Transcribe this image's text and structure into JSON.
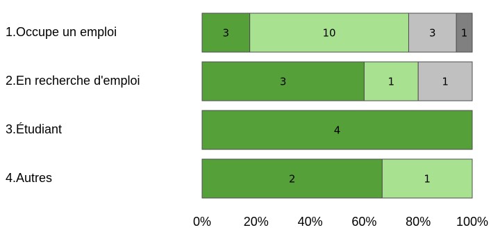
{
  "chart_data": {
    "type": "bar",
    "orientation": "horizontal",
    "stacked": "percent",
    "categories": [
      "1.Occupe un emploi",
      "2.En recherche d'emploi",
      "3.Étudiant",
      "4.Autres"
    ],
    "series": [
      {
        "values": [
          3,
          3,
          4,
          2
        ],
        "color": "#56a03a"
      },
      {
        "values": [
          10,
          1,
          0,
          1
        ],
        "color": "#a8e190"
      },
      {
        "values": [
          3,
          1,
          0,
          0
        ],
        "color": "#c0c0c0"
      },
      {
        "values": [
          1,
          0,
          0,
          0
        ],
        "color": "#808080"
      }
    ],
    "value_labels": [
      [
        "3",
        "10",
        "3",
        "1"
      ],
      [
        "3",
        "1",
        "1",
        ""
      ],
      [
        "4",
        "",
        "",
        ""
      ],
      [
        "2",
        "1",
        "",
        ""
      ]
    ],
    "xticks": [
      "0%",
      "20%",
      "40%",
      "60%",
      "80%",
      "100%"
    ],
    "xlim": [
      0,
      100
    ],
    "grid": false,
    "legend": false
  }
}
